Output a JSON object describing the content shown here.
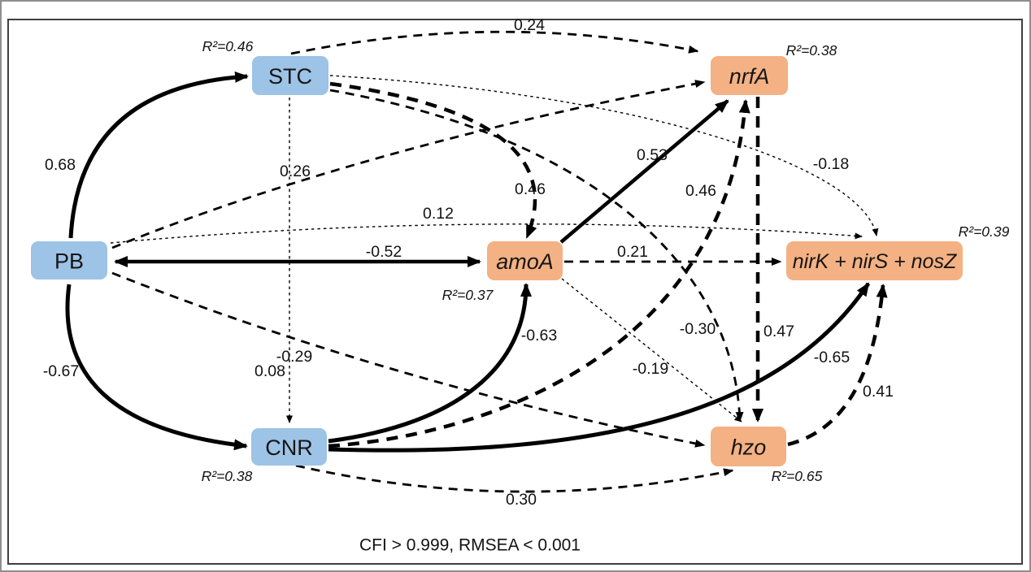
{
  "figure": {
    "footer": "CFI > 0.999, RMSEA < 0.001",
    "colors": {
      "blue": "#9DC3E6",
      "orange": "#F4B183",
      "line": "#000000",
      "frame": "#3f3f3f"
    },
    "nodes": [
      {
        "id": "pb",
        "label": "PB",
        "type": "blue",
        "italic": false,
        "r2": ""
      },
      {
        "id": "stc",
        "label": "STC",
        "type": "blue",
        "italic": false,
        "r2": "R²=0.46"
      },
      {
        "id": "cnr",
        "label": "CNR",
        "type": "blue",
        "italic": false,
        "r2": "R²=0.38"
      },
      {
        "id": "amoa",
        "label": "amoA",
        "type": "orange",
        "italic": true,
        "r2": "R²=0.37"
      },
      {
        "id": "nrfa",
        "label": "nrfA",
        "type": "orange",
        "italic": true,
        "r2": "R²=0.38"
      },
      {
        "id": "nirk",
        "label": "nirK + nirS + nosZ",
        "type": "orange",
        "italic": true,
        "r2": "R²=0.39"
      },
      {
        "id": "hzo",
        "label": "hzo",
        "type": "orange",
        "italic": true,
        "r2": "R²=0.65"
      }
    ],
    "edges": [
      {
        "from": "pb",
        "to": "stc",
        "label": "0.68",
        "style": "solid-thick",
        "arrows": "end"
      },
      {
        "from": "pb",
        "to": "cnr",
        "label": "-0.67",
        "style": "solid-thick",
        "arrows": "end"
      },
      {
        "from": "pb",
        "to": "amoa",
        "label": "-0.52",
        "style": "solid-med",
        "arrows": "both"
      },
      {
        "from": "pb",
        "to": "nrfa",
        "label": "0.26",
        "style": "dash-med",
        "arrows": "end"
      },
      {
        "from": "pb",
        "to": "nirk",
        "label": "0.12",
        "style": "dot-thin",
        "arrows": "end"
      },
      {
        "from": "pb",
        "to": "hzo",
        "label": "-0.29",
        "style": "dash-med",
        "arrows": "end"
      },
      {
        "from": "stc",
        "to": "nrfa",
        "label": "0.24",
        "style": "dash-med",
        "arrows": "end"
      },
      {
        "from": "stc",
        "to": "amoa",
        "label": "0.46",
        "style": "dash-thick",
        "arrows": "end"
      },
      {
        "from": "stc",
        "to": "cnr",
        "label": "0.08",
        "style": "dot-thin",
        "arrows": "end"
      },
      {
        "from": "stc",
        "to": "nirk",
        "label": "-0.18",
        "style": "dot-thin",
        "arrows": "end"
      },
      {
        "from": "stc",
        "to": "hzo",
        "label": "-0.30",
        "style": "dash-med",
        "arrows": "end"
      },
      {
        "from": "cnr",
        "to": "amoa",
        "label": "-0.63",
        "style": "solid-thick",
        "arrows": "end"
      },
      {
        "from": "cnr",
        "to": "nrfa",
        "label": "0.46",
        "style": "dash-thick",
        "arrows": "end"
      },
      {
        "from": "cnr",
        "to": "nirk",
        "label": "-0.65",
        "style": "solid-thick",
        "arrows": "end"
      },
      {
        "from": "cnr",
        "to": "hzo",
        "label": "0.30",
        "style": "dash-med",
        "arrows": "end"
      },
      {
        "from": "amoa",
        "to": "nrfa",
        "label": "0.53",
        "style": "solid-med",
        "arrows": "end"
      },
      {
        "from": "amoa",
        "to": "nirk",
        "label": "0.21",
        "style": "dash-med",
        "arrows": "end"
      },
      {
        "from": "amoa",
        "to": "hzo",
        "label": "-0.19",
        "style": "dot-thin",
        "arrows": "end"
      },
      {
        "from": "nrfa",
        "to": "hzo",
        "label": "0.47",
        "style": "dash-thick",
        "arrows": "end"
      },
      {
        "from": "hzo",
        "to": "nirk",
        "label": "0.41",
        "style": "dash-thick",
        "arrows": "end"
      }
    ]
  }
}
